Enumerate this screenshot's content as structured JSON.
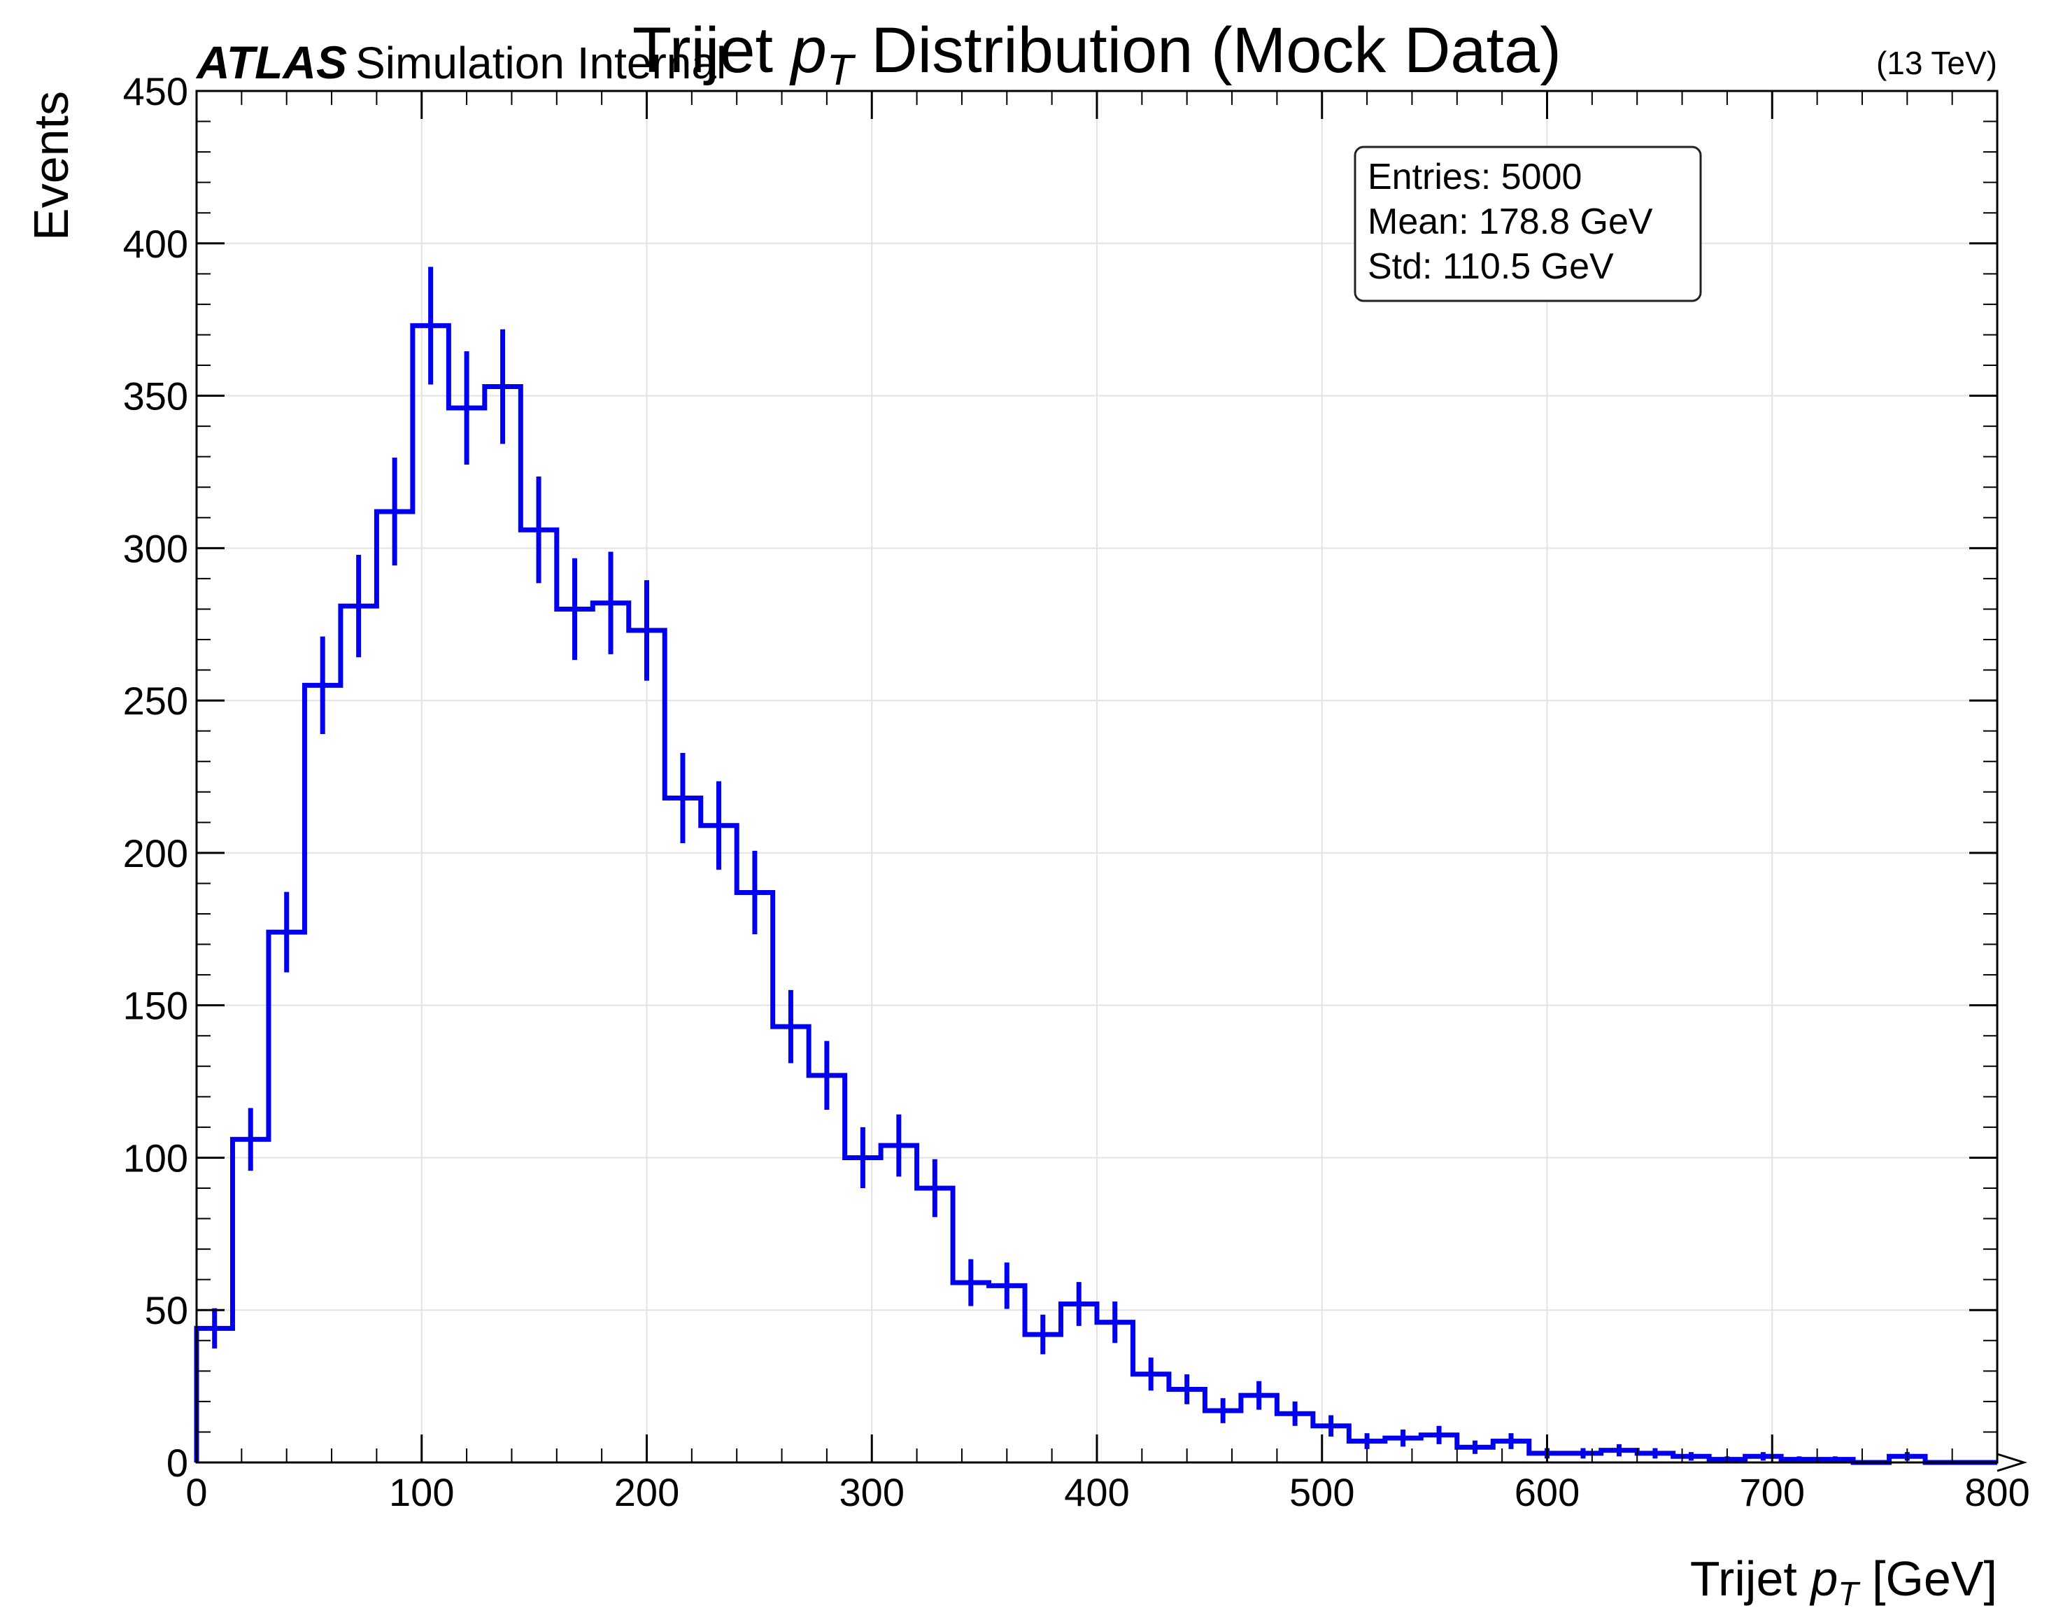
{
  "chart_data": {
    "type": "histogram",
    "title_prefix": "Trijet",
    "title_var": "p",
    "title_sub": "T",
    "title_suffix": " Distribution (Mock Data)",
    "atlas_label": "ATLAS",
    "atlas_sub": "Simulation Internal",
    "energy_label": "(13 TeV)",
    "xlabel_prefix": "Trijet",
    "xlabel_var": "p",
    "xlabel_sub": "T",
    "xlabel_suffix": " [GeV]",
    "ylabel": "Events",
    "xlim": [
      0,
      800
    ],
    "ylim": [
      0,
      450
    ],
    "x_ticks": [
      "0",
      "100",
      "200",
      "300",
      "400",
      "500",
      "600",
      "700",
      "800"
    ],
    "y_ticks": [
      "0",
      "50",
      "100",
      "150",
      "200",
      "250",
      "300",
      "350",
      "400",
      "450"
    ],
    "grid": true,
    "bin_width": 16,
    "bin_start": 0,
    "values": [
      44,
      106,
      174,
      255,
      281,
      312,
      373,
      346,
      353,
      306,
      280,
      282,
      273,
      218,
      209,
      187,
      143,
      127,
      100,
      104,
      90,
      59,
      58,
      42,
      52,
      46,
      29,
      24,
      17,
      22,
      16,
      12,
      7,
      8,
      9,
      5,
      7,
      3,
      3,
      4,
      3,
      2,
      1,
      2,
      1,
      1,
      0,
      2,
      0,
      0
    ],
    "errors": [
      6.6,
      10.3,
      13.2,
      16.0,
      16.8,
      17.7,
      19.3,
      18.6,
      18.8,
      17.5,
      16.7,
      16.8,
      16.5,
      14.8,
      14.5,
      13.7,
      12.0,
      11.3,
      10.0,
      10.2,
      9.5,
      7.7,
      7.6,
      6.5,
      7.2,
      6.8,
      5.4,
      4.9,
      4.1,
      4.7,
      4.0,
      3.5,
      2.6,
      2.8,
      3.0,
      2.2,
      2.6,
      1.7,
      1.7,
      2.0,
      1.7,
      1.4,
      1.0,
      1.4,
      1.0,
      1.0,
      0,
      1.4,
      0,
      0
    ],
    "series_color": "#0000ee",
    "stats": {
      "entries": "Entries: 5000",
      "mean": "Mean: 178.8 GeV",
      "std": "Std: 110.5 GeV"
    },
    "stats_placement": "top-right"
  }
}
